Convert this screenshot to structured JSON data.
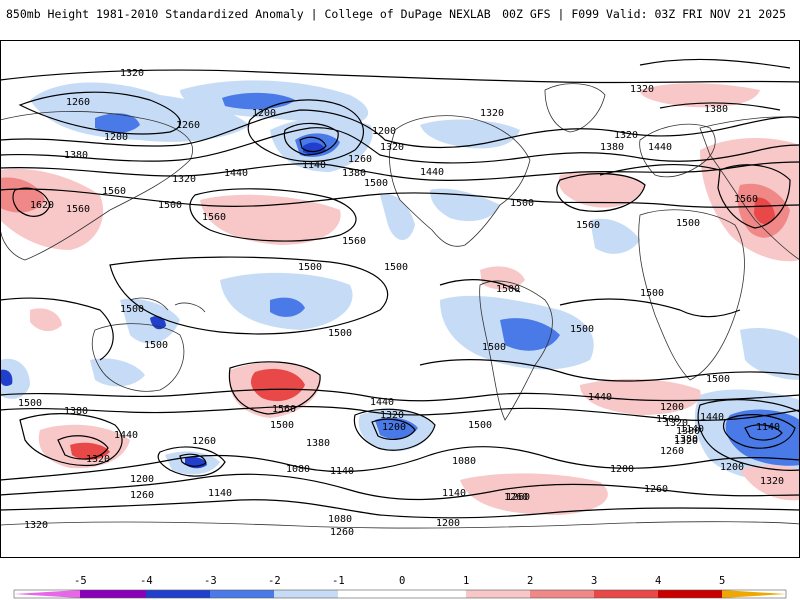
{
  "header": {
    "title": "850mb Height 1981-2010 Standardized Anomaly | College of DuPage NEXLAB",
    "model_info": "00Z GFS | F099 Valid: 03Z FRI NOV 21 2025"
  },
  "colors": {
    "neg5": "#e866e8",
    "neg4": "#8a00b8",
    "neg3": "#1f3fcc",
    "neg2": "#4a7ae8",
    "neg1": "#c6dcf6",
    "zero": "#ffffff",
    "pos1": "#f8c8c8",
    "pos2": "#f08888",
    "pos3": "#e84848",
    "pos4": "#c80000",
    "pos5": "#f0a800"
  },
  "contour_labels": [
    {
      "text": "1320",
      "id": "c1"
    },
    {
      "text": "1260",
      "id": "c2"
    },
    {
      "text": "1200",
      "id": "c3"
    },
    {
      "text": "1260",
      "id": "c4"
    },
    {
      "text": "1380",
      "id": "c5"
    },
    {
      "text": "1320",
      "id": "c6"
    },
    {
      "text": "1200",
      "id": "c7"
    },
    {
      "text": "1140",
      "id": "c8"
    },
    {
      "text": "1260",
      "id": "c9"
    },
    {
      "text": "1200",
      "id": "c10"
    },
    {
      "text": "1320",
      "id": "c11"
    },
    {
      "text": "1380",
      "id": "c12"
    },
    {
      "text": "1440",
      "id": "c13"
    },
    {
      "text": "1500",
      "id": "c14"
    },
    {
      "text": "1560",
      "id": "c15"
    },
    {
      "text": "1500",
      "id": "c16"
    },
    {
      "text": "1560",
      "id": "c17"
    },
    {
      "text": "1560",
      "id": "c18"
    },
    {
      "text": "1620",
      "id": "c19"
    },
    {
      "text": "1560",
      "id": "c20"
    },
    {
      "text": "1440",
      "id": "c21"
    },
    {
      "text": "1320",
      "id": "c22"
    },
    {
      "text": "1380",
      "id": "c23"
    },
    {
      "text": "1320",
      "id": "c24"
    },
    {
      "text": "1380",
      "id": "c25"
    },
    {
      "text": "1440",
      "id": "c26"
    },
    {
      "text": "1320",
      "id": "c27"
    },
    {
      "text": "1500",
      "id": "c28"
    },
    {
      "text": "1560",
      "id": "c29"
    },
    {
      "text": "1500",
      "id": "c30"
    },
    {
      "text": "1560",
      "id": "c31"
    },
    {
      "text": "1500",
      "id": "c32"
    },
    {
      "text": "1500",
      "id": "c33"
    },
    {
      "text": "1500",
      "id": "c34"
    },
    {
      "text": "1500",
      "id": "c35"
    },
    {
      "text": "1500",
      "id": "c36"
    },
    {
      "text": "1500",
      "id": "c37"
    },
    {
      "text": "1500",
      "id": "c38"
    },
    {
      "text": "1500",
      "id": "c39"
    },
    {
      "text": "1500",
      "id": "c40"
    },
    {
      "text": "1500",
      "id": "c41"
    },
    {
      "text": "1560",
      "id": "c42"
    },
    {
      "text": "1500",
      "id": "c43"
    },
    {
      "text": "1380",
      "id": "c44"
    },
    {
      "text": "1440",
      "id": "c45"
    },
    {
      "text": "1320",
      "id": "c46"
    },
    {
      "text": "1260",
      "id": "c47"
    },
    {
      "text": "1200",
      "id": "c48"
    },
    {
      "text": "1260",
      "id": "c49"
    },
    {
      "text": "1320",
      "id": "c50"
    },
    {
      "text": "1140",
      "id": "c51"
    },
    {
      "text": "1080",
      "id": "c52"
    },
    {
      "text": "1140",
      "id": "c53"
    },
    {
      "text": "1080",
      "id": "c54"
    },
    {
      "text": "1200",
      "id": "c55"
    },
    {
      "text": "1260",
      "id": "c56"
    },
    {
      "text": "1440",
      "id": "c57"
    },
    {
      "text": "1320",
      "id": "c58"
    },
    {
      "text": "1200",
      "id": "c59"
    },
    {
      "text": "1380",
      "id": "c60"
    },
    {
      "text": "1080",
      "id": "c61"
    },
    {
      "text": "1140",
      "id": "c62"
    },
    {
      "text": "1500",
      "id": "c63"
    },
    {
      "text": "1200",
      "id": "c64"
    },
    {
      "text": "1260",
      "id": "c65"
    },
    {
      "text": "1440",
      "id": "c66"
    },
    {
      "text": "1500",
      "id": "c67"
    },
    {
      "text": "1380",
      "id": "c68"
    },
    {
      "text": "1320",
      "id": "c69"
    },
    {
      "text": "1260",
      "id": "c70"
    },
    {
      "text": "1140",
      "id": "c71"
    },
    {
      "text": "1200",
      "id": "c72"
    },
    {
      "text": "1260",
      "id": "c73"
    },
    {
      "text": "1320",
      "id": "c74"
    },
    {
      "text": "1140",
      "id": "c75"
    },
    {
      "text": "1380",
      "id": "c76"
    },
    {
      "text": "1440",
      "id": "c77"
    },
    {
      "text": "1320",
      "id": "c78"
    },
    {
      "text": "1200",
      "id": "c79"
    },
    {
      "text": "1260",
      "id": "c80"
    },
    {
      "text": "1500",
      "id": "c81"
    }
  ],
  "colorbar": {
    "ticks": [
      "-5",
      "-4",
      "-3",
      "-2",
      "-1",
      "0",
      "1",
      "2",
      "3",
      "4",
      "5"
    ]
  }
}
